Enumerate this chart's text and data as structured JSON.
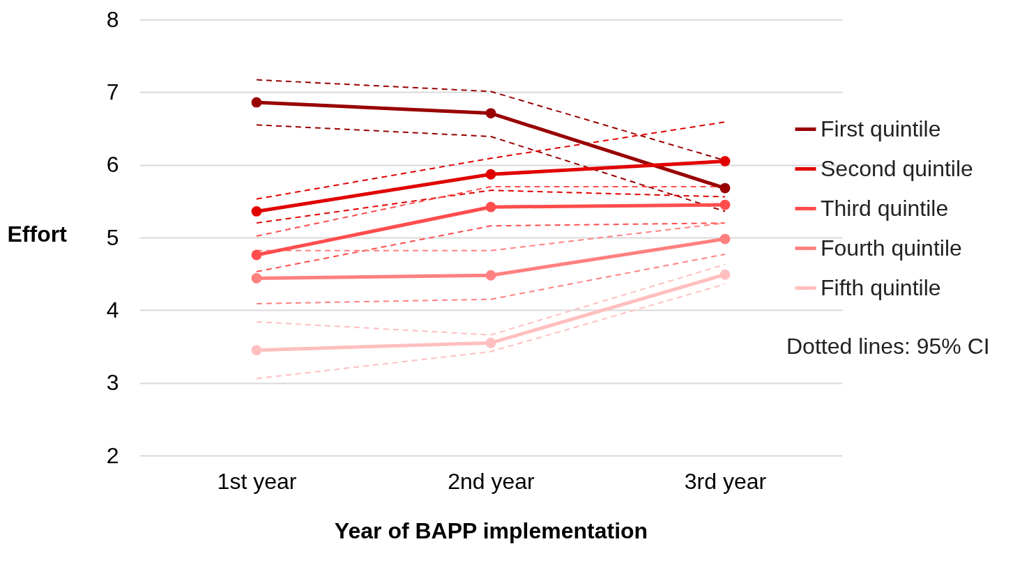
{
  "chart_data": {
    "type": "line",
    "xlabel": "Year of BAPP implementation",
    "ylabel": "Effort",
    "categories": [
      "1st year",
      "2nd year",
      "3rd year"
    ],
    "ylim": [
      2,
      8
    ],
    "yticks": [
      2,
      3,
      4,
      5,
      6,
      7,
      8
    ],
    "grid": "y",
    "legend": "right",
    "marker": "circle",
    "line_style": "solid",
    "annotations": [
      "Dotted lines: 95% CI"
    ],
    "series": [
      {
        "name": "First quintile",
        "color": "#990000",
        "values": [
          6.86,
          6.71,
          5.68
        ]
      },
      {
        "name": "Second quintile",
        "color": "#e00000",
        "values": [
          5.36,
          5.87,
          6.05
        ]
      },
      {
        "name": "Third quintile",
        "color": "#ff4d4d",
        "values": [
          4.76,
          5.42,
          5.45
        ]
      },
      {
        "name": "Fourth quintile",
        "color": "#ff8080",
        "values": [
          4.44,
          4.48,
          4.98
        ]
      },
      {
        "name": "Fifth quintile",
        "color": "#ffbfbf",
        "values": [
          3.45,
          3.55,
          4.49
        ]
      },
      {
        "color": "#990000",
        "values": [
          7.17,
          7.01,
          6.06
        ],
        "line_style": "dashed",
        "marker": "none"
      },
      {
        "color": "#990000",
        "values": [
          6.55,
          6.39,
          5.36
        ],
        "line_style": "dashed",
        "marker": "none"
      },
      {
        "color": "#e00000",
        "values": [
          5.53,
          6.09,
          6.59
        ],
        "line_style": "dashed",
        "marker": "none"
      },
      {
        "color": "#e00000",
        "values": [
          5.2,
          5.65,
          5.56
        ],
        "line_style": "dashed",
        "marker": "none"
      },
      {
        "color": "#ff4d4d",
        "values": [
          5.02,
          5.7,
          5.7
        ],
        "line_style": "dashed",
        "marker": "none"
      },
      {
        "color": "#ff4d4d",
        "values": [
          4.53,
          5.16,
          5.2
        ],
        "line_style": "dashed",
        "marker": "none"
      },
      {
        "color": "#ff8080",
        "values": [
          4.82,
          4.82,
          5.2
        ],
        "line_style": "dashed",
        "marker": "none"
      },
      {
        "color": "#ff8080",
        "values": [
          4.09,
          4.15,
          4.77
        ],
        "line_style": "dashed",
        "marker": "none"
      },
      {
        "color": "#ffbfbf",
        "values": [
          3.84,
          3.66,
          4.63
        ],
        "line_style": "dashed",
        "marker": "none"
      },
      {
        "color": "#ffbfbf",
        "values": [
          3.06,
          3.43,
          4.36
        ],
        "line_style": "dashed",
        "marker": "none"
      }
    ]
  }
}
